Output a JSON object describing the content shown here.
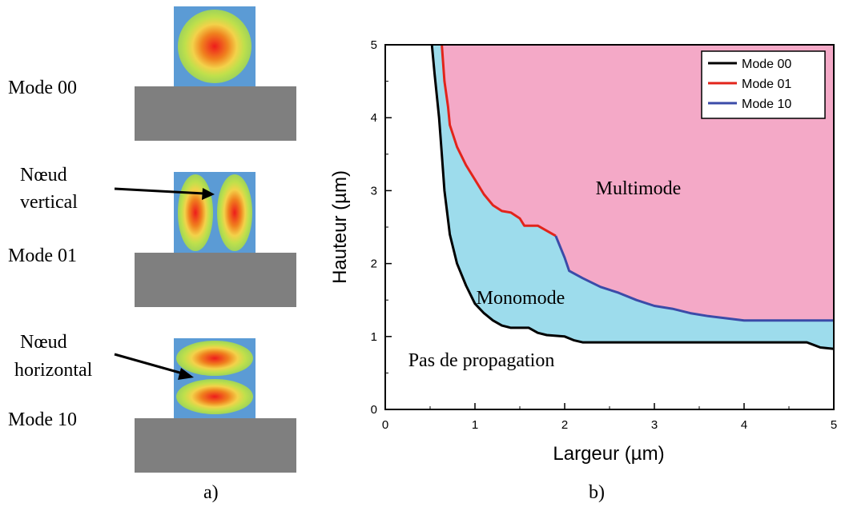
{
  "colors": {
    "waveguide_core": "#5b9bd5",
    "substrate": "#7f7f7f",
    "mode_00": "#000000",
    "mode_01": "#e2241b",
    "mode_10": "#3b4ba8",
    "multimode_region": "#f4a9c7",
    "monomode_region": "#9ddcec"
  },
  "panel_a": {
    "caption": "a)",
    "mode00_label": "Mode 00",
    "node_vertical_label_line1": "Nœud",
    "node_vertical_label_line2": "vertical",
    "mode01_label": "Mode 01",
    "node_horizontal_label_line1": "Nœud",
    "node_horizontal_label_line2": "horizontal",
    "mode10_label": "Mode 10"
  },
  "chart_data": {
    "type": "area",
    "caption": "b)",
    "title": "",
    "xlabel": "Largeur (µm)",
    "ylabel": "Hauteur (µm)",
    "xlim": [
      0,
      5
    ],
    "ylim": [
      0,
      5
    ],
    "xticks": [
      0,
      1,
      2,
      3,
      4,
      5
    ],
    "yticks": [
      0,
      1,
      2,
      3,
      4,
      5
    ],
    "x_tick_labels": [
      "0",
      "1",
      "2",
      "3",
      "4",
      "5"
    ],
    "y_tick_labels": [
      "0",
      "1",
      "2",
      "3",
      "4",
      "5"
    ],
    "grid": false,
    "legend_position": "top-right",
    "legend": [
      "Mode 00",
      "Mode 01",
      "Mode 10"
    ],
    "region_labels": {
      "multimode": "Multimode",
      "monomode": "Monomode",
      "no_propagation": "Pas de propagation"
    },
    "series": [
      {
        "name": "Mode 00",
        "points": [
          [
            0.52,
            5.0
          ],
          [
            0.55,
            4.6
          ],
          [
            0.6,
            4.0
          ],
          [
            0.63,
            3.5
          ],
          [
            0.66,
            3.0
          ],
          [
            0.7,
            2.6
          ],
          [
            0.72,
            2.4
          ],
          [
            0.8,
            2.0
          ],
          [
            0.9,
            1.7
          ],
          [
            1.0,
            1.45
          ],
          [
            1.1,
            1.32
          ],
          [
            1.2,
            1.22
          ],
          [
            1.3,
            1.15
          ],
          [
            1.4,
            1.12
          ],
          [
            1.6,
            1.12
          ],
          [
            1.7,
            1.05
          ],
          [
            1.8,
            1.02
          ],
          [
            2.0,
            1.0
          ],
          [
            2.1,
            0.95
          ],
          [
            2.2,
            0.92
          ],
          [
            2.4,
            0.92
          ],
          [
            3.0,
            0.92
          ],
          [
            4.0,
            0.92
          ],
          [
            4.7,
            0.92
          ],
          [
            4.85,
            0.85
          ],
          [
            5.0,
            0.83
          ]
        ]
      },
      {
        "name": "Mode 01",
        "points": [
          [
            0.63,
            5.0
          ],
          [
            0.66,
            4.5
          ],
          [
            0.7,
            4.15
          ],
          [
            0.72,
            3.9
          ],
          [
            0.8,
            3.6
          ],
          [
            0.9,
            3.35
          ],
          [
            1.0,
            3.15
          ],
          [
            1.1,
            2.95
          ],
          [
            1.2,
            2.8
          ],
          [
            1.3,
            2.72
          ],
          [
            1.4,
            2.7
          ],
          [
            1.5,
            2.62
          ],
          [
            1.55,
            2.52
          ],
          [
            1.7,
            2.52
          ],
          [
            1.8,
            2.45
          ],
          [
            1.9,
            2.38
          ]
        ]
      },
      {
        "name": "Mode 10",
        "points": [
          [
            1.9,
            2.38
          ],
          [
            2.0,
            2.08
          ],
          [
            2.05,
            1.9
          ],
          [
            2.2,
            1.8
          ],
          [
            2.4,
            1.68
          ],
          [
            2.6,
            1.6
          ],
          [
            2.8,
            1.5
          ],
          [
            3.0,
            1.42
          ],
          [
            3.2,
            1.38
          ],
          [
            3.4,
            1.32
          ],
          [
            3.6,
            1.28
          ],
          [
            3.8,
            1.25
          ],
          [
            4.0,
            1.22
          ],
          [
            4.3,
            1.22
          ],
          [
            4.6,
            1.22
          ],
          [
            5.0,
            1.22
          ]
        ]
      }
    ]
  }
}
